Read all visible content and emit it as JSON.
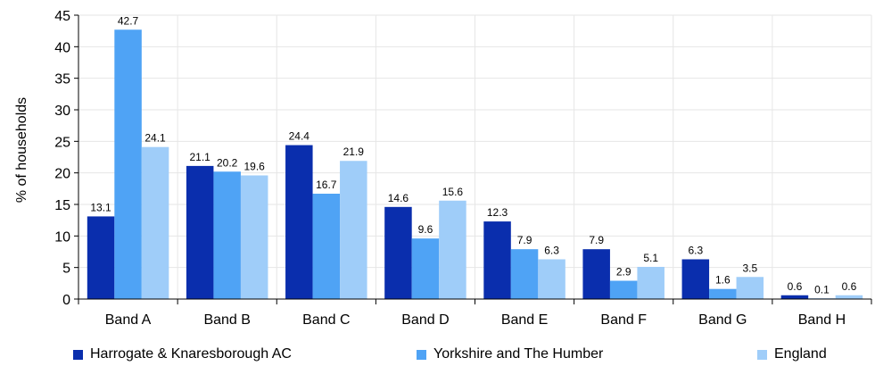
{
  "chart_data": {
    "type": "bar",
    "categories": [
      "Band A",
      "Band B",
      "Band C",
      "Band D",
      "Band E",
      "Band F",
      "Band G",
      "Band H"
    ],
    "series": [
      {
        "name": "Harrogate & Knaresborough AC",
        "color": "#0A2EAD",
        "values": [
          13.1,
          21.1,
          24.4,
          14.6,
          12.3,
          7.9,
          6.3,
          0.6
        ]
      },
      {
        "name": "Yorkshire and The Humber",
        "color": "#4FA3F5",
        "values": [
          42.7,
          20.2,
          16.7,
          9.6,
          7.9,
          2.9,
          1.6,
          0.1
        ]
      },
      {
        "name": "England",
        "color": "#9FCDF9",
        "values": [
          24.1,
          19.6,
          21.9,
          15.6,
          6.3,
          5.1,
          3.5,
          0.6
        ]
      }
    ],
    "title": "",
    "xlabel": "",
    "ylabel": "% of households",
    "ylim": [
      0,
      45
    ],
    "yticks": [
      0,
      5,
      10,
      15,
      20,
      25,
      30,
      35,
      40,
      45
    ],
    "grid": true,
    "legend_position": "bottom"
  }
}
